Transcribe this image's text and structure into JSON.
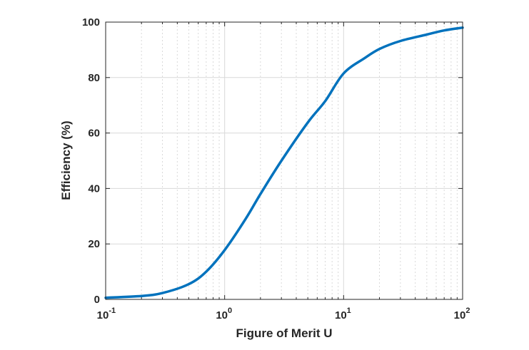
{
  "chart_data": {
    "type": "line",
    "title": "",
    "xlabel": "Figure of Merit U",
    "ylabel": "Efficiency (%)",
    "x_scale": "log",
    "xlim": [
      0.1,
      100
    ],
    "ylim": [
      0,
      100
    ],
    "grid": true,
    "x_ticks": [
      {
        "value": 0.1,
        "base": "10",
        "exp": "-1"
      },
      {
        "value": 1,
        "base": "10",
        "exp": "0"
      },
      {
        "value": 10,
        "base": "10",
        "exp": "1"
      },
      {
        "value": 100,
        "base": "10",
        "exp": "2"
      }
    ],
    "y_ticks": [
      {
        "value": 0,
        "label": "0"
      },
      {
        "value": 20,
        "label": "20"
      },
      {
        "value": 40,
        "label": "40"
      },
      {
        "value": 60,
        "label": "60"
      },
      {
        "value": 80,
        "label": "80"
      },
      {
        "value": 100,
        "label": "100"
      }
    ],
    "series": [
      {
        "color": "#0072bd",
        "x": [
          0.1,
          0.2,
          0.3,
          0.5,
          0.7,
          1,
          1.5,
          2,
          3,
          5,
          7,
          10,
          15,
          20,
          30,
          50,
          70,
          100
        ],
        "y": [
          0.6,
          1.2,
          2.3,
          5.5,
          10.0,
          17.8,
          29.0,
          38.0,
          50.0,
          63.8,
          71.5,
          81.5,
          87.0,
          90.3,
          93.2,
          95.5,
          97.0,
          98.0
        ]
      }
    ]
  }
}
